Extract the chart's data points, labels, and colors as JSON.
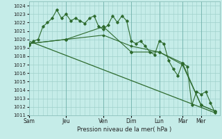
{
  "xlabel": "Pression niveau de la mer( hPa )",
  "ylim": [
    1011,
    1024.5
  ],
  "yticks": [
    1011,
    1012,
    1013,
    1014,
    1015,
    1016,
    1017,
    1018,
    1019,
    1020,
    1021,
    1022,
    1023,
    1024
  ],
  "day_labels": [
    "Sam",
    "Jeu",
    "Ven",
    "Dim",
    "Lun",
    "Mar",
    "Mer"
  ],
  "day_positions": [
    0,
    8,
    16,
    22,
    28,
    33,
    37
  ],
  "xlim": [
    0,
    41
  ],
  "bg_color": "#c5ece8",
  "grid_color": "#9fd0cb",
  "line_color": "#2d6a2d",
  "series1_x": [
    0,
    1,
    2,
    3,
    4,
    5,
    6,
    7,
    8,
    9,
    10,
    11,
    12,
    13,
    14,
    15,
    16,
    17,
    18,
    19,
    20,
    21,
    22,
    23,
    24,
    25,
    26,
    27,
    28,
    29,
    30,
    31,
    32,
    33,
    34,
    35,
    36,
    37,
    38,
    39,
    40
  ],
  "series1_y": [
    1019.3,
    1019.8,
    1020.0,
    1021.5,
    1022.0,
    1022.5,
    1023.5,
    1022.5,
    1023.0,
    1022.2,
    1022.5,
    1022.2,
    1021.9,
    1022.5,
    1022.8,
    1021.5,
    1021.2,
    1021.7,
    1022.8,
    1022.0,
    1022.8,
    1022.2,
    1019.8,
    1019.5,
    1019.8,
    1019.2,
    1018.5,
    1018.2,
    1019.8,
    1019.5,
    1017.5,
    1016.5,
    1015.7,
    1017.2,
    1016.8,
    1012.2,
    1013.8,
    1013.5,
    1013.8,
    1012.5,
    1011.3
  ],
  "series2_x": [
    0,
    8,
    16,
    22,
    28,
    33,
    37,
    40
  ],
  "series2_y": [
    1019.5,
    1020.0,
    1021.5,
    1018.5,
    1018.5,
    1017.2,
    1012.2,
    1011.5
  ],
  "series3_x": [
    0,
    8,
    16,
    22,
    28,
    33,
    37,
    40
  ],
  "series3_y": [
    1019.5,
    1020.0,
    1020.5,
    1019.2,
    1018.5,
    1017.0,
    1012.2,
    1011.5
  ],
  "trend_x": [
    0,
    40
  ],
  "trend_y": [
    1019.8,
    1011.3
  ]
}
